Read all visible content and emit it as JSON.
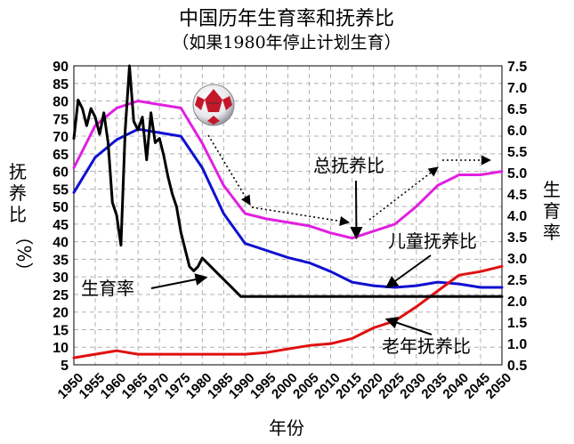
{
  "chart_data": {
    "type": "line",
    "title": "中国历年生育率和抚养比",
    "subtitle": "（如果1980年停止计划生育）",
    "xlabel": "年份",
    "ylabel_left": [
      "抚",
      "养",
      "比",
      "（%）"
    ],
    "ylabel_right": [
      "生",
      "育",
      "率"
    ],
    "xlim": [
      1950,
      2050
    ],
    "ylim_left": [
      5,
      90
    ],
    "ylim_right": [
      0.5,
      7.5
    ],
    "grid": true,
    "x_ticks": [
      "1950",
      "1955",
      "1960",
      "1965",
      "1970",
      "1975",
      "1980",
      "1985",
      "1990",
      "1995",
      "2000",
      "2005",
      "2010",
      "2015",
      "2020",
      "2025",
      "2030",
      "2035",
      "2040",
      "2045",
      "2050"
    ],
    "y_left_ticks": [
      "5",
      "10",
      "15",
      "20",
      "25",
      "30",
      "35",
      "40",
      "45",
      "50",
      "55",
      "60",
      "65",
      "70",
      "75",
      "80",
      "85",
      "90"
    ],
    "y_right_ticks": [
      "0.5",
      "1.0",
      "1.5",
      "2.0",
      "2.5",
      "3.0",
      "3.5",
      "4.0",
      "4.5",
      "5.0",
      "5.5",
      "6.0",
      "6.5",
      "7.0",
      "7.5"
    ],
    "series": [
      {
        "name": "总抚养比",
        "axis": "left",
        "color": "#e020e0",
        "x": [
          1950,
          1955,
          1960,
          1965,
          1970,
          1975,
          1980,
          1985,
          1990,
          1995,
          2000,
          2005,
          2010,
          2015,
          2020,
          2025,
          2030,
          2035,
          2040,
          2045,
          2050
        ],
        "y": [
          61,
          73,
          78,
          80,
          79,
          78,
          68,
          56,
          48,
          46.5,
          45.5,
          44.5,
          42.5,
          41,
          43,
          45,
          50,
          56,
          59,
          59,
          60
        ]
      },
      {
        "name": "儿童抚养比",
        "axis": "left",
        "color": "#1010d0",
        "x": [
          1950,
          1955,
          1960,
          1965,
          1970,
          1975,
          1980,
          1985,
          1990,
          1995,
          2000,
          2005,
          2010,
          2015,
          2020,
          2025,
          2030,
          2035,
          2040,
          2045,
          2050
        ],
        "y": [
          54,
          64,
          69,
          72,
          71,
          70,
          61,
          48,
          39.5,
          37.5,
          35.5,
          34,
          31.5,
          28.5,
          27.5,
          27,
          27.5,
          28.5,
          28,
          27,
          27
        ]
      },
      {
        "name": "老年抚养比",
        "axis": "left",
        "color": "#e01010",
        "x": [
          1950,
          1955,
          1960,
          1965,
          1970,
          1975,
          1980,
          1985,
          1990,
          1995,
          2000,
          2005,
          2010,
          2015,
          2020,
          2025,
          2030,
          2035,
          2040,
          2045,
          2050
        ],
        "y": [
          7,
          8,
          9,
          8,
          8,
          8,
          8,
          8,
          8,
          8.5,
          9.5,
          10.5,
          11,
          12.5,
          15.5,
          17.5,
          21.5,
          26,
          30.5,
          31.5,
          33
        ]
      },
      {
        "name": "生育率",
        "axis": "right",
        "color": "#000000",
        "x": [
          1950,
          1951,
          1952,
          1953,
          1954,
          1955,
          1956,
          1957,
          1958,
          1959,
          1960,
          1961,
          1962,
          1963,
          1964,
          1965,
          1966,
          1967,
          1968,
          1969,
          1970,
          1971,
          1972,
          1973,
          1974,
          1975,
          1976,
          1977,
          1978,
          1979,
          1980,
          1981,
          1982,
          1983,
          1984,
          1985,
          1986,
          1987,
          1988,
          1989,
          1990,
          1995,
          2000,
          2005,
          2010,
          2015,
          2020,
          2025,
          2030,
          2035,
          2040,
          2045,
          2050
        ],
        "y": [
          5.8,
          6.7,
          6.5,
          6.1,
          6.5,
          6.3,
          5.9,
          6.4,
          5.7,
          4.3,
          4.0,
          3.3,
          6.0,
          7.5,
          6.2,
          6.0,
          6.3,
          5.3,
          6.4,
          5.7,
          5.8,
          5.4,
          4.9,
          4.5,
          4.2,
          3.6,
          3.2,
          2.8,
          2.7,
          2.8,
          3.0,
          2.9,
          2.8,
          2.7,
          2.6,
          2.5,
          2.4,
          2.3,
          2.2,
          2.1,
          2.1,
          2.1,
          2.1,
          2.1,
          2.1,
          2.1,
          2.1,
          2.1,
          2.1,
          2.1,
          2.1,
          2.1,
          2.1
        ]
      }
    ],
    "annotations": [
      {
        "text": "总抚养比",
        "target_x": 2016,
        "target_y": 41,
        "axis": "left"
      },
      {
        "text": "儿童抚养比",
        "target_x": 2023,
        "target_y": 27,
        "axis": "left"
      },
      {
        "text": "生育率",
        "target_x": 1981,
        "target_y": 2.55,
        "axis": "right"
      },
      {
        "text": "老年抚养比",
        "target_x": 2023,
        "target_y": 18,
        "axis": "left"
      }
    ]
  },
  "icons": {
    "ball": "soccer-ball-icon"
  }
}
